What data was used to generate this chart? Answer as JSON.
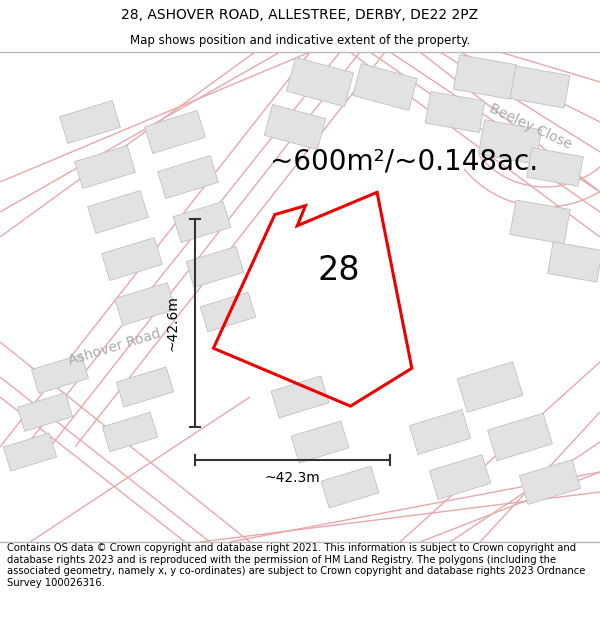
{
  "title": "28, ASHOVER ROAD, ALLESTREE, DERBY, DE22 2PZ",
  "subtitle": "Map shows position and indicative extent of the property.",
  "area_text": "~600m²/~0.148ac.",
  "plot_number": "28",
  "dim_horizontal": "~42.3m",
  "dim_vertical": "~42.6m",
  "road_label_left": "Ashover Road",
  "road_label_right": "Beeley Close",
  "footer_text": "Contains OS data © Crown copyright and database right 2021. This information is subject to Crown copyright and database rights 2023 and is reproduced with the permission of HM Land Registry. The polygons (including the associated geometry, namely x, y co-ordinates) are subject to Crown copyright and database rights 2023 Ordnance Survey 100026316.",
  "bg_color": "#f5f0f0",
  "plot_color": "#ee0000",
  "road_outline_color": "#e8a8a8",
  "road_fill_color": "#f8f0f0",
  "building_fill": "#e2e2e2",
  "building_stroke": "#c0c0c0",
  "road_label_color": "#aaaaaa",
  "dim_line_color": "#333333",
  "title_fontsize": 10,
  "subtitle_fontsize": 8.5,
  "area_fontsize": 20,
  "plot_label_fontsize": 24,
  "dim_fontsize": 10,
  "road_label_fontsize": 10,
  "footer_fontsize": 7.2
}
